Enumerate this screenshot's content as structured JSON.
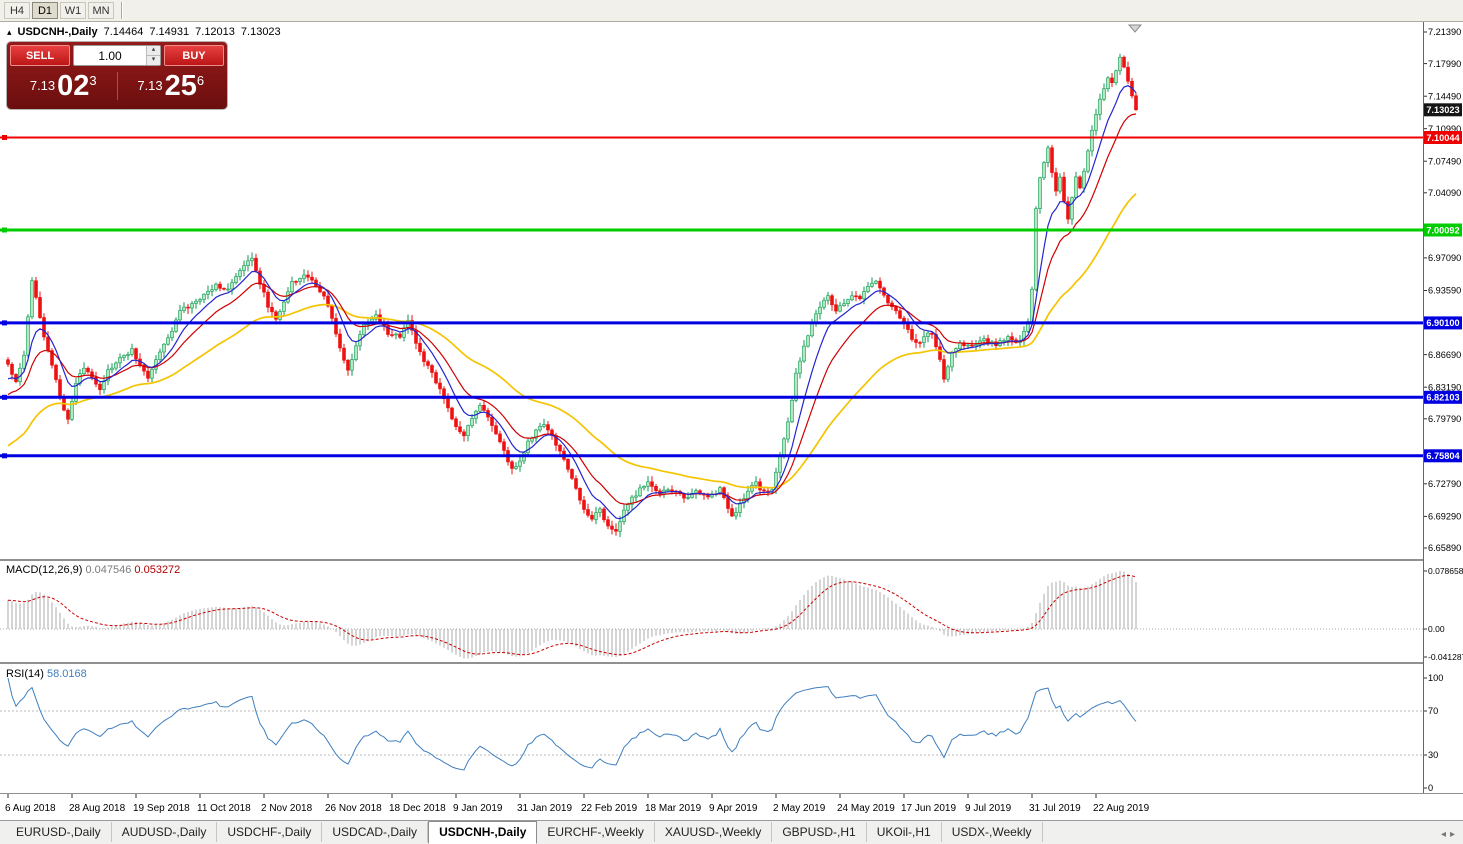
{
  "toolbar": {
    "periods": [
      {
        "label": "H4",
        "active": false
      },
      {
        "label": "D1",
        "active": true
      },
      {
        "label": "W1",
        "active": false
      },
      {
        "label": "MN",
        "active": false
      }
    ]
  },
  "icons": {
    "collapse_arrow": "▴",
    "spinner_up": "▴",
    "spinner_down": "▾",
    "tab_scroll_left": "◂",
    "tab_scroll_right": "▸"
  },
  "chart_header": {
    "symbol": "USDCNH-,Daily",
    "open": "7.14464",
    "high": "7.14931",
    "low": "7.12013",
    "close": "7.13023"
  },
  "trade_panel": {
    "sell_label": "SELL",
    "buy_label": "BUY",
    "volume": "1.00",
    "sell_price_main": "7.13",
    "sell_price_big": "02",
    "sell_price_sup": "3",
    "buy_price_main": "7.13",
    "buy_price_big": "25",
    "buy_price_sup": "6"
  },
  "chart_data": {
    "type": "candlestick",
    "symbol": "USDCNH-,Daily",
    "timeframe": "Daily",
    "price_axis": {
      "min": 6.6589,
      "max": 7.2139,
      "ticks": [
        7.2139,
        7.1799,
        7.1449,
        7.1099,
        7.0749,
        7.0409,
        7.0059,
        6.9709,
        6.9359,
        6.9009,
        6.8669,
        6.8319,
        6.7979,
        6.7629,
        6.7279,
        6.6929,
        6.6589
      ]
    },
    "current_price": 7.13023,
    "hlines": [
      {
        "price": 7.10044,
        "color": "#ee0000",
        "width": 2
      },
      {
        "price": 7.00092,
        "color": "#00cc00",
        "width": 3
      },
      {
        "price": 6.901,
        "color": "#0000e0",
        "width": 3
      },
      {
        "price": 6.82103,
        "color": "#0000e0",
        "width": 3
      },
      {
        "price": 6.75804,
        "color": "#0000e0",
        "width": 3
      }
    ],
    "x_labels": [
      "6 Aug 2018",
      "28 Aug 2018",
      "19 Sep 2018",
      "11 Oct 2018",
      "2 Nov 2018",
      "26 Nov 2018",
      "18 Dec 2018",
      "9 Jan 2019",
      "31 Jan 2019",
      "22 Feb 2019",
      "18 Mar 2019",
      "9 Apr 2019",
      "2 May 2019",
      "24 May 2019",
      "17 Jun 2019",
      "9 Jul 2019",
      "31 Jul 2019",
      "22 Aug 2019"
    ],
    "label_step": 16,
    "candle_count": 283,
    "close_path": [
      [
        0,
        6.856
      ],
      [
        2,
        6.838
      ],
      [
        4,
        6.868
      ],
      [
        6,
        6.948
      ],
      [
        7,
        6.93
      ],
      [
        9,
        6.886
      ],
      [
        11,
        6.856
      ],
      [
        13,
        6.82
      ],
      [
        15,
        6.798
      ],
      [
        17,
        6.836
      ],
      [
        19,
        6.853
      ],
      [
        21,
        6.844
      ],
      [
        23,
        6.83
      ],
      [
        25,
        6.849
      ],
      [
        28,
        6.862
      ],
      [
        31,
        6.872
      ],
      [
        33,
        6.855
      ],
      [
        35,
        6.842
      ],
      [
        37,
        6.862
      ],
      [
        40,
        6.884
      ],
      [
        43,
        6.914
      ],
      [
        46,
        6.92
      ],
      [
        49,
        6.931
      ],
      [
        52,
        6.942
      ],
      [
        55,
        6.937
      ],
      [
        58,
        6.956
      ],
      [
        61,
        6.972
      ],
      [
        63,
        6.944
      ],
      [
        65,
        6.92
      ],
      [
        67,
        6.903
      ],
      [
        69,
        6.925
      ],
      [
        71,
        6.945
      ],
      [
        74,
        6.953
      ],
      [
        77,
        6.942
      ],
      [
        79,
        6.93
      ],
      [
        81,
        6.905
      ],
      [
        83,
        6.872
      ],
      [
        85,
        6.85
      ],
      [
        87,
        6.876
      ],
      [
        89,
        6.898
      ],
      [
        92,
        6.908
      ],
      [
        95,
        6.89
      ],
      [
        98,
        6.886
      ],
      [
        100,
        6.905
      ],
      [
        102,
        6.878
      ],
      [
        104,
        6.86
      ],
      [
        106,
        6.848
      ],
      [
        108,
        6.828
      ],
      [
        110,
        6.81
      ],
      [
        112,
        6.788
      ],
      [
        114,
        6.78
      ],
      [
        116,
        6.798
      ],
      [
        118,
        6.812
      ],
      [
        120,
        6.8
      ],
      [
        122,
        6.782
      ],
      [
        124,
        6.762
      ],
      [
        126,
        6.744
      ],
      [
        128,
        6.752
      ],
      [
        130,
        6.772
      ],
      [
        132,
        6.785
      ],
      [
        134,
        6.792
      ],
      [
        136,
        6.78
      ],
      [
        138,
        6.762
      ],
      [
        140,
        6.745
      ],
      [
        142,
        6.722
      ],
      [
        144,
        6.7
      ],
      [
        146,
        6.692
      ],
      [
        148,
        6.7
      ],
      [
        150,
        6.682
      ],
      [
        152,
        6.678
      ],
      [
        154,
        6.698
      ],
      [
        156,
        6.712
      ],
      [
        158,
        6.722
      ],
      [
        160,
        6.728
      ],
      [
        163,
        6.718
      ],
      [
        166,
        6.722
      ],
      [
        169,
        6.712
      ],
      [
        172,
        6.72
      ],
      [
        175,
        6.714
      ],
      [
        178,
        6.722
      ],
      [
        181,
        6.692
      ],
      [
        183,
        6.706
      ],
      [
        185,
        6.72
      ],
      [
        187,
        6.728
      ],
      [
        189,
        6.718
      ],
      [
        191,
        6.722
      ],
      [
        193,
        6.758
      ],
      [
        195,
        6.793
      ],
      [
        197,
        6.845
      ],
      [
        199,
        6.878
      ],
      [
        201,
        6.9
      ],
      [
        203,
        6.918
      ],
      [
        205,
        6.93
      ],
      [
        207,
        6.914
      ],
      [
        209,
        6.922
      ],
      [
        211,
        6.932
      ],
      [
        213,
        6.928
      ],
      [
        215,
        6.94
      ],
      [
        217,
        6.948
      ],
      [
        219,
        6.93
      ],
      [
        221,
        6.918
      ],
      [
        223,
        6.908
      ],
      [
        225,
        6.892
      ],
      [
        227,
        6.878
      ],
      [
        229,
        6.886
      ],
      [
        231,
        6.89
      ],
      [
        233,
        6.862
      ],
      [
        234,
        6.842
      ],
      [
        236,
        6.868
      ],
      [
        238,
        6.88
      ],
      [
        241,
        6.876
      ],
      [
        244,
        6.882
      ],
      [
        247,
        6.878
      ],
      [
        250,
        6.884
      ],
      [
        253,
        6.88
      ],
      [
        255,
        6.902
      ],
      [
        256,
        6.938
      ],
      [
        257,
        7.022
      ],
      [
        258,
        7.058
      ],
      [
        259,
        7.072
      ],
      [
        260,
        7.088
      ],
      [
        261,
        7.062
      ],
      [
        262,
        7.044
      ],
      [
        263,
        7.058
      ],
      [
        264,
        7.032
      ],
      [
        265,
        7.012
      ],
      [
        266,
        7.036
      ],
      [
        267,
        7.058
      ],
      [
        268,
        7.048
      ],
      [
        269,
        7.066
      ],
      [
        270,
        7.088
      ],
      [
        271,
        7.108
      ],
      [
        272,
        7.125
      ],
      [
        273,
        7.142
      ],
      [
        274,
        7.155
      ],
      [
        275,
        7.165
      ],
      [
        276,
        7.158
      ],
      [
        277,
        7.172
      ],
      [
        278,
        7.188
      ],
      [
        279,
        7.174
      ],
      [
        280,
        7.16
      ],
      [
        281,
        7.145
      ],
      [
        282,
        7.13023
      ]
    ],
    "ma_periods": {
      "fast": 8,
      "mid": 16,
      "slow": 45
    },
    "indicators": {
      "macd": {
        "name": "MACD(12,26,9)",
        "value_main": "0.047546",
        "value_signal": "0.053272",
        "axis_labels": [
          "0.078658",
          "0.00",
          "-0.041287"
        ],
        "params": [
          12,
          26,
          9
        ]
      },
      "rsi": {
        "name": "RSI(14)",
        "value": "58.0168",
        "axis_labels": [
          "100",
          "70",
          "30",
          "0"
        ],
        "levels": [
          70,
          30
        ],
        "period": 14
      }
    },
    "colors": {
      "candle_up_fill": "#b2e8c0",
      "candle_up_border": "#0c9a50",
      "candle_down": "#ee1111",
      "ma_fast": "#2424d0",
      "ma_mid": "#d00000",
      "ma_slow": "#f5c400",
      "macd_histogram": "#ababab",
      "macd_signal": "#cc0000",
      "rsi_line": "#3f7fbf",
      "badge_current": "#151515"
    }
  },
  "tabs": [
    {
      "label": "EURUSD-,Daily",
      "active": false
    },
    {
      "label": "AUDUSD-,Daily",
      "active": false
    },
    {
      "label": "USDCHF-,Daily",
      "active": false
    },
    {
      "label": "USDCAD-,Daily",
      "active": false
    },
    {
      "label": "USDCNH-,Daily",
      "active": true
    },
    {
      "label": "EURCHF-,Weekly",
      "active": false
    },
    {
      "label": "XAUUSD-,Weekly",
      "active": false
    },
    {
      "label": "GBPUSD-,H1",
      "active": false
    },
    {
      "label": "UKOil-,H1",
      "active": false
    },
    {
      "label": "USDX-,Weekly",
      "active": false
    }
  ]
}
